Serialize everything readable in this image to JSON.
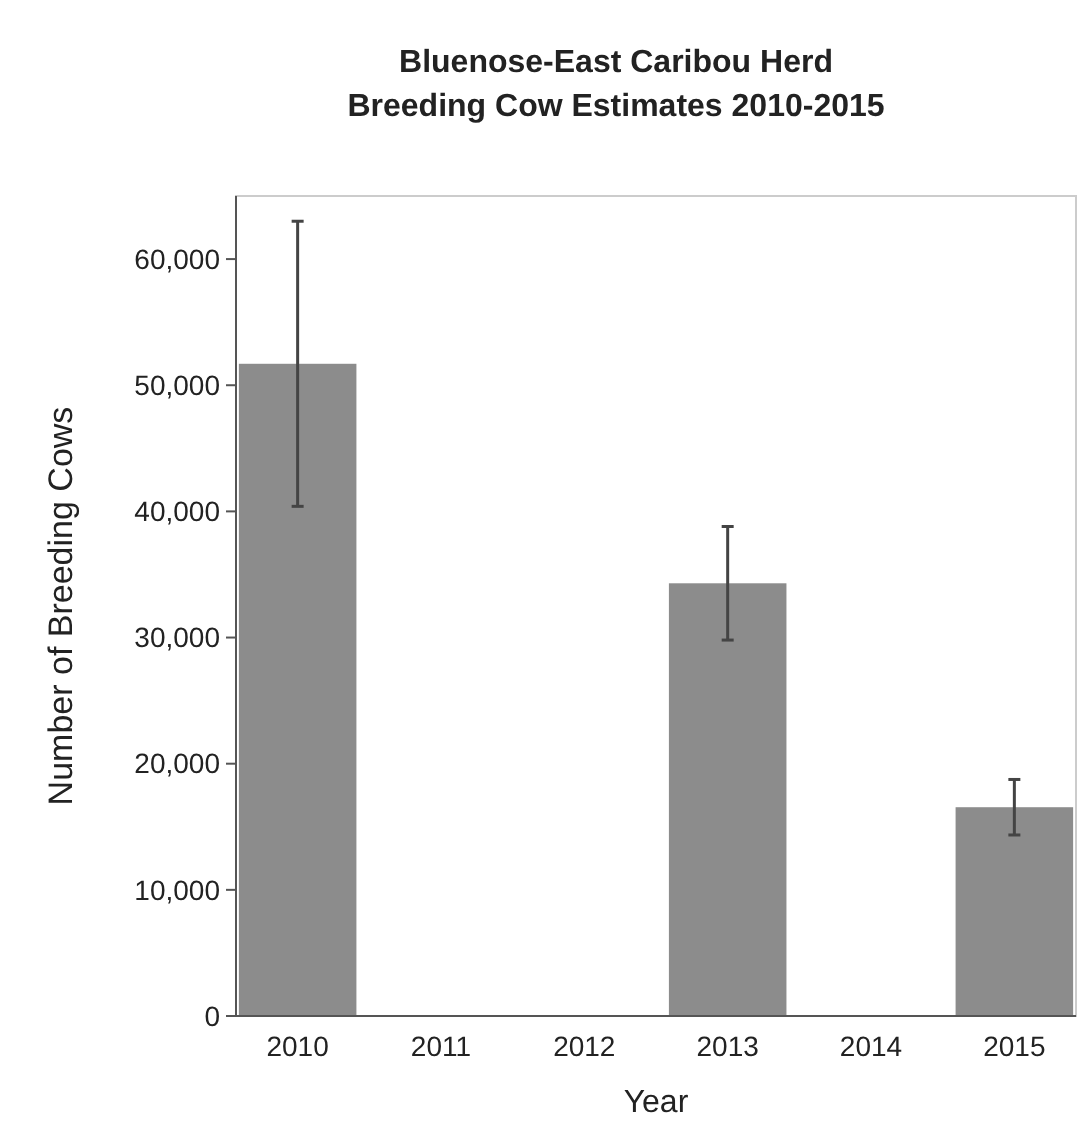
{
  "chart_data": {
    "type": "bar",
    "title": "Bluenose-East Caribou Herd\nBreeding Cow Estimates 2010-2015",
    "xlabel": "Year",
    "ylabel": "Number of Breeding Cows",
    "categories": [
      "2010",
      "2011",
      "2012",
      "2013",
      "2014",
      "2015"
    ],
    "values": [
      51700,
      null,
      null,
      34300,
      null,
      16550
    ],
    "errors": [
      11300,
      null,
      null,
      4500,
      null,
      2200
    ],
    "color": "#8c8c8c",
    "ylim": [
      0,
      65000
    ],
    "yticks": [
      0,
      {
        "value": 10000,
        "label": "10,000"
      },
      {
        "value": 20000,
        "label": "20,000"
      },
      {
        "value": 30000,
        "label": "30,000"
      },
      {
        "value": 40000,
        "label": "40,000"
      },
      {
        "value": 50000,
        "label": "50,000"
      },
      {
        "value": 60000,
        "label": "60,000"
      }
    ]
  }
}
